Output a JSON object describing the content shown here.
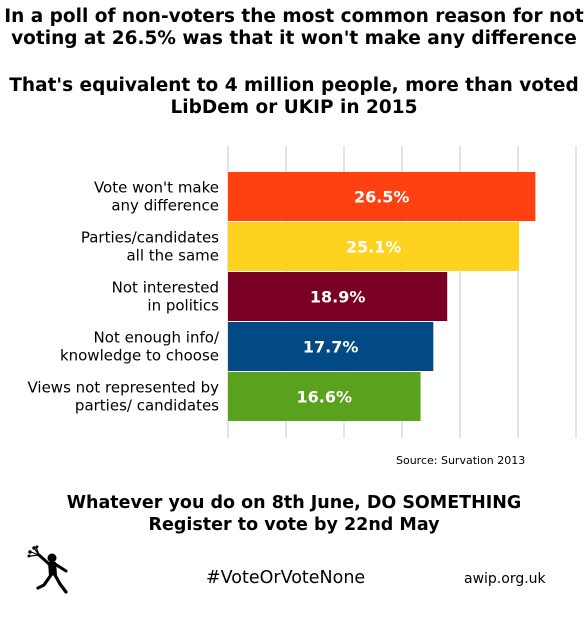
{
  "header": {
    "line1": "In a poll of non-voters the most common reason for not",
    "line2": "voting at 26.5% was that it won't make any difference",
    "line3": "That's equivalent to 4 million people, more than voted",
    "line4": "LibDem or UKIP in 2015"
  },
  "chart_data": {
    "type": "bar",
    "orientation": "horizontal",
    "title": "",
    "xlabel": "",
    "ylabel": "",
    "xlim": [
      0,
      30
    ],
    "grid": true,
    "categories": [
      [
        "Vote won't make",
        "any difference"
      ],
      [
        "Parties/candidates",
        "all the same"
      ],
      [
        "Not interested",
        "in politics"
      ],
      [
        "Not enough info/",
        "knowledge to choose"
      ],
      [
        "Views not represented by",
        "parties/ candidates"
      ]
    ],
    "values": [
      26.5,
      25.1,
      18.9,
      17.7,
      16.6
    ],
    "value_labels": [
      "26.5%",
      "25.1%",
      "18.9%",
      "17.7%",
      "16.6%"
    ],
    "colors": [
      "#ff4112",
      "#ffd21f",
      "#7a0023",
      "#034a84",
      "#5aa11e"
    ]
  },
  "source": "Source: Survation 2013",
  "footer": {
    "line1": "Whatever you do on 8th June, DO SOMETHING",
    "line2": "Register to vote by 22nd May"
  },
  "hashtag": "#VoteOrVoteNone",
  "website": "awip.org.uk",
  "logo": {
    "icon": "flower-thrower-icon"
  }
}
